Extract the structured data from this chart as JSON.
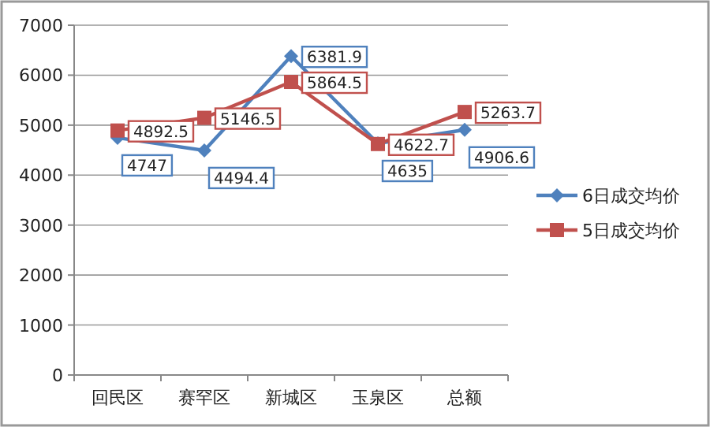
{
  "chart_data": {
    "type": "line",
    "categories": [
      "回民区",
      "赛罕区",
      "新城区",
      "玉泉区",
      "总额"
    ],
    "series": [
      {
        "name": "6日成交均价",
        "color": "#4f81bd",
        "marker": "diamond",
        "values": [
          4747,
          4494.4,
          6381.9,
          4635,
          4906.6
        ]
      },
      {
        "name": "5日成交均价",
        "color": "#c0504d",
        "marker": "square",
        "values": [
          4892.5,
          5146.5,
          5864.5,
          4622.7,
          5263.7
        ]
      }
    ],
    "ylim": [
      0,
      7000
    ],
    "yticks": [
      0,
      1000,
      2000,
      3000,
      4000,
      5000,
      6000,
      7000
    ],
    "grid": "y",
    "legend": "right",
    "data_labels": true
  }
}
